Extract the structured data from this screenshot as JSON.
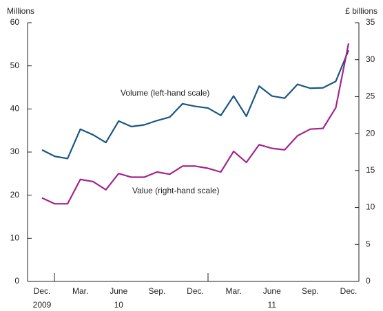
{
  "chart_data": {
    "type": "line",
    "y_axis_label": "Millions",
    "y2_axis_label": "£ billions",
    "categories": [
      "Dec.",
      null,
      null,
      "Mar.",
      null,
      null,
      "June",
      null,
      null,
      "Sep.",
      null,
      null,
      "Dec.",
      null,
      null,
      "Mar.",
      null,
      null,
      "June",
      null,
      null,
      "Sep.",
      null,
      null,
      "Dec."
    ],
    "year_categories": [
      "2009",
      null,
      null,
      null,
      null,
      null,
      "10",
      null,
      null,
      null,
      null,
      null,
      null,
      null,
      null,
      null,
      null,
      null,
      "11",
      null,
      null,
      null,
      null,
      null,
      null
    ],
    "series": [
      {
        "name": "Volume (left-hand scale)",
        "color": "#185682",
        "axis": "y",
        "values": [
          30.5,
          29,
          28.5,
          35.3,
          34,
          32.2,
          37.2,
          35.9,
          36.3,
          37.3,
          38.1,
          41.2,
          40.6,
          40.2,
          38.5,
          43,
          38.3,
          45.3,
          43,
          42.5,
          45.7,
          44.8,
          44.9,
          46.4,
          53.6
        ]
      },
      {
        "name": "Value (right-hand scale)",
        "color": "#a3238e",
        "axis": "y2",
        "values": [
          11.3,
          10.5,
          10.5,
          13.8,
          13.5,
          12.4,
          14.6,
          14.1,
          14.1,
          14.8,
          14.5,
          15.6,
          15.6,
          15.3,
          14.8,
          17.6,
          16.1,
          18.5,
          18,
          17.8,
          19.7,
          20.6,
          20.7,
          23.5,
          32.2
        ]
      }
    ],
    "ylim": [
      0,
      60
    ],
    "yticks": [
      0,
      10,
      20,
      30,
      40,
      50,
      60
    ],
    "y2lim": [
      0,
      35
    ],
    "y2ticks": [
      0,
      5,
      10,
      15,
      20,
      25,
      30,
      35
    ],
    "grid": false
  }
}
